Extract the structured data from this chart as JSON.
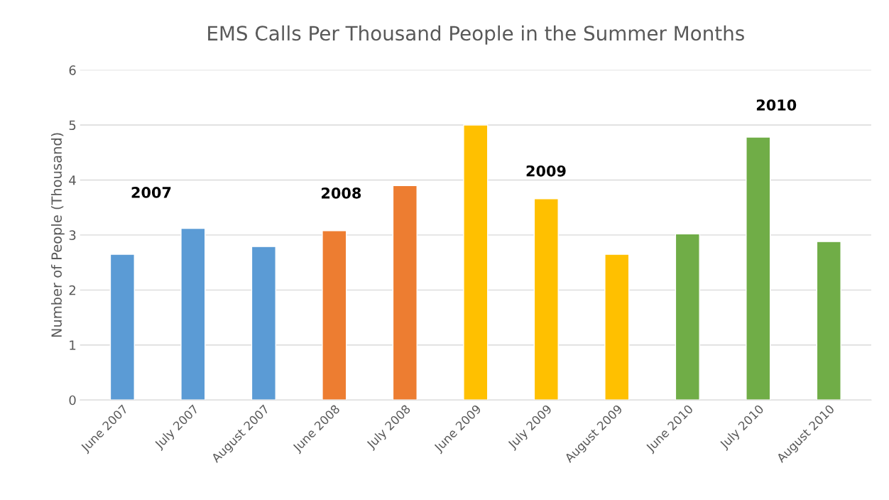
{
  "chart_data": {
    "type": "bar",
    "title": "EMS Calls Per Thousand People in the Summer Months",
    "ylabel": "Number of People (Thousand)",
    "categories": [
      "June 2007",
      "July 2007",
      "August 2007",
      "June 2008",
      "July 2008",
      "June 2009",
      "July 2009",
      "August 2009",
      "June 2010",
      "July 2010",
      "August 2010"
    ],
    "values": [
      2.65,
      3.12,
      2.79,
      3.08,
      3.9,
      5.0,
      3.66,
      2.65,
      3.02,
      4.78,
      2.88
    ],
    "colors": [
      "#5b9bd5",
      "#5b9bd5",
      "#5b9bd5",
      "#ed7d31",
      "#ed7d31",
      "#ffc000",
      "#ffc000",
      "#ffc000",
      "#70ad47",
      "#70ad47",
      "#70ad47"
    ],
    "ylim": [
      0,
      6
    ],
    "yticks": [
      0,
      1,
      2,
      3,
      4,
      5,
      6
    ],
    "grid": "y",
    "annotations": [
      "2007",
      "2008",
      "2009",
      "2010"
    ]
  }
}
